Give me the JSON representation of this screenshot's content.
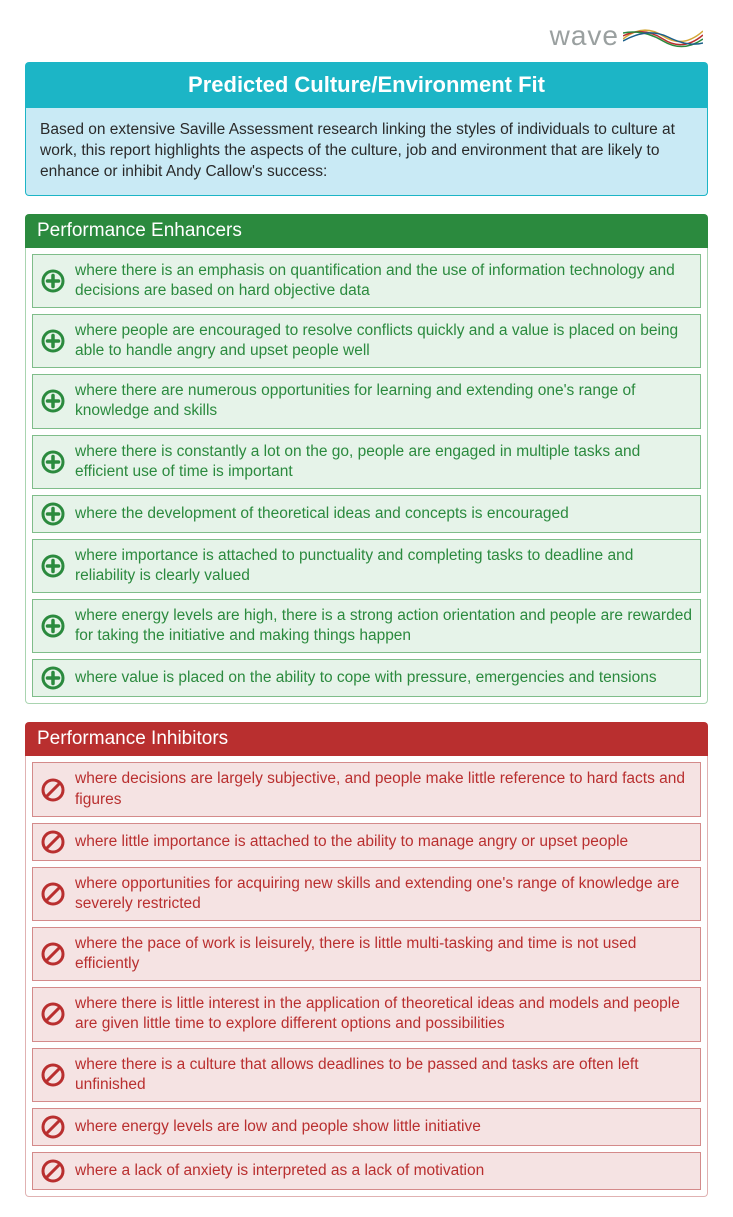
{
  "logo": {
    "text": "wave"
  },
  "title": "Predicted Culture/Environment Fit",
  "intro": "Based on extensive Saville Assessment research linking the styles of individuals to culture at work, this report highlights the aspects of the culture, job and environment that are likely to enhance or inhibit Andy Callow's success:",
  "enhancers": {
    "heading": "Performance Enhancers",
    "header_bg": "#2b8a3e",
    "item_bg": "#e6f3e9",
    "item_border": "#7fbd8a",
    "text_color": "#2b8a3e",
    "items": [
      "where there is an emphasis on quantification and the use of information technology and decisions are based on hard objective data",
      "where people are encouraged to resolve conflicts quickly and a value is placed on being able to handle angry and upset people well",
      "where there are numerous opportunities for learning and extending one's range of knowledge and skills",
      "where there is constantly a lot on the go, people are engaged in multiple tasks and efficient use of time is important",
      "where the development of theoretical ideas and concepts is encouraged",
      "where importance is attached to punctuality and completing tasks to deadline and reliability is clearly valued",
      "where energy levels are high, there is a strong action orientation and people are rewarded for taking the initiative and making things happen",
      "where value is placed on the ability to cope with pressure, emergencies and tensions"
    ]
  },
  "inhibitors": {
    "heading": "Performance Inhibitors",
    "header_bg": "#b92f2f",
    "item_bg": "#f5e3e3",
    "item_border": "#d48a8a",
    "text_color": "#b92f2f",
    "items": [
      "where decisions are largely subjective, and people make little reference to hard facts and figures",
      "where little importance is attached to the ability to manage angry or upset people",
      "where opportunities for acquiring new skills and extending one's range of knowledge are severely restricted",
      "where the pace of work is leisurely, there is little multi-tasking and time is not used efficiently",
      "where there is little interest in the application of theoretical ideas and models and people are given little time to explore different options and possibilities",
      "where there is a culture that allows deadlines to be passed and tasks are often left unfinished",
      "where energy levels are low and people show little initiative",
      "where a lack of anxiety is interpreted as a lack of motivation"
    ]
  },
  "colors": {
    "title_bg": "#1cb5c6",
    "intro_bg": "#c9eaf5"
  }
}
